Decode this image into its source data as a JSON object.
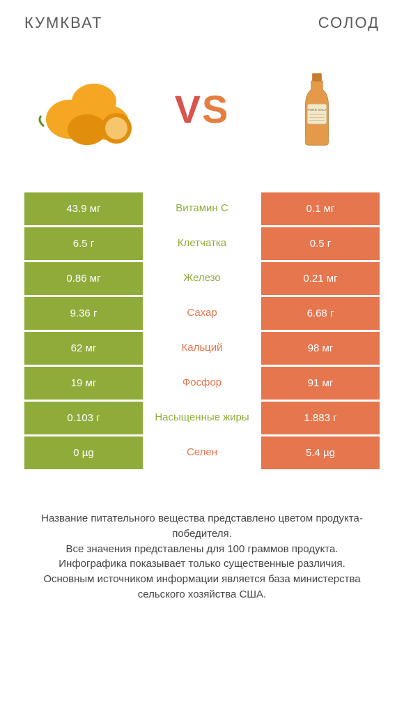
{
  "titles": {
    "left": "КУМКВАТ",
    "right": "СОЛОД"
  },
  "vs": {
    "v": "V",
    "s": "S"
  },
  "colors": {
    "green": "#8fac3a",
    "orange": "#e5764e",
    "green_text": "#8fac3a",
    "orange_text": "#e5764e",
    "kumquat_fill": "#f5a623",
    "kumquat_shadow": "#e08e0b",
    "bottle_fill": "#e59a4a",
    "bottle_cap": "#c77b2e",
    "bottle_label": "#f2e7c9"
  },
  "rows": [
    {
      "left": "43.9 мг",
      "mid": "Витамин C",
      "right": "0.1 мг",
      "winner": "left"
    },
    {
      "left": "6.5 г",
      "mid": "Клетчатка",
      "right": "0.5 г",
      "winner": "left"
    },
    {
      "left": "0.86 мг",
      "mid": "Железо",
      "right": "0.21 мг",
      "winner": "left"
    },
    {
      "left": "9.36 г",
      "mid": "Сахар",
      "right": "6.68 г",
      "winner": "right"
    },
    {
      "left": "62 мг",
      "mid": "Кальций",
      "right": "98 мг",
      "winner": "right"
    },
    {
      "left": "19 мг",
      "mid": "Фосфор",
      "right": "91 мг",
      "winner": "right"
    },
    {
      "left": "0.103 г",
      "mid": "Насыщенные жиры",
      "right": "1.883 г",
      "winner": "left"
    },
    {
      "left": "0 µg",
      "mid": "Селен",
      "right": "5.4 µg",
      "winner": "right"
    }
  ],
  "footer": [
    "Название питательного вещества представлено цветом продукта-победителя.",
    "Все значения представлены для 100 граммов продукта.",
    "Инфографика показывает только существенные различия.",
    "Основным источником информации является база министерства сельского хозяйства США."
  ]
}
